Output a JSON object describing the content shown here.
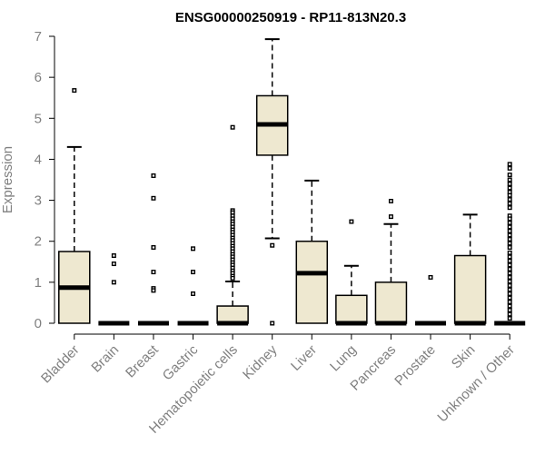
{
  "chart_data": {
    "type": "boxplot",
    "title": "ENSG00000250919 - RP11-813N20.3",
    "xlabel": "",
    "ylabel": "Expression",
    "ylim": [
      0,
      7
    ],
    "yticks": [
      0,
      1,
      2,
      3,
      4,
      5,
      6,
      7
    ],
    "box_color": "#EEE8D0",
    "categories": [
      "Bladder",
      "Brain",
      "Breast",
      "Gastric",
      "Hematopoietic cells",
      "Kidney",
      "Liver",
      "Lung",
      "Pancreas",
      "Prostate",
      "Skin",
      "Unknown / Other"
    ],
    "boxes": [
      {
        "name": "Bladder",
        "q1": 0,
        "median": 0.87,
        "q3": 1.75,
        "whisker_low": 0,
        "whisker_high": 4.3,
        "outliers": [
          5.68
        ]
      },
      {
        "name": "Brain",
        "q1": 0,
        "median": 0,
        "q3": 0,
        "whisker_low": 0,
        "whisker_high": 0,
        "outliers": [
          1.65,
          1.45,
          1.0
        ]
      },
      {
        "name": "Breast",
        "q1": 0,
        "median": 0,
        "q3": 0,
        "whisker_low": 0,
        "whisker_high": 0,
        "outliers": [
          3.6,
          3.05,
          1.85,
          1.25,
          0.85,
          0.8
        ]
      },
      {
        "name": "Gastric",
        "q1": 0,
        "median": 0,
        "q3": 0,
        "whisker_low": 0,
        "whisker_high": 0,
        "outliers": [
          1.82,
          1.25,
          0.72
        ]
      },
      {
        "name": "Hematopoietic cells",
        "q1": 0,
        "median": 0,
        "q3": 0.42,
        "whisker_low": 0,
        "whisker_high": 1.02,
        "outliers": [
          4.78,
          2.75,
          2.7,
          2.62,
          2.55,
          2.48,
          2.42,
          2.35,
          2.28,
          2.22,
          2.15,
          2.08,
          2.02,
          1.95,
          1.88,
          1.82,
          1.75,
          1.68,
          1.62,
          1.55,
          1.48,
          1.42,
          1.35,
          1.28,
          1.22,
          1.15,
          1.1
        ]
      },
      {
        "name": "Kidney",
        "q1": 4.1,
        "median": 4.85,
        "q3": 5.55,
        "whisker_low": 2.07,
        "whisker_high": 6.93,
        "outliers": [
          1.9,
          0
        ]
      },
      {
        "name": "Liver",
        "q1": 0,
        "median": 1.22,
        "q3": 2.0,
        "whisker_low": 0,
        "whisker_high": 3.48,
        "outliers": []
      },
      {
        "name": "Lung",
        "q1": 0,
        "median": 0,
        "q3": 0.68,
        "whisker_low": 0,
        "whisker_high": 1.4,
        "outliers": [
          2.48
        ]
      },
      {
        "name": "Pancreas",
        "q1": 0,
        "median": 0,
        "q3": 1.0,
        "whisker_low": 0,
        "whisker_high": 2.42,
        "outliers": [
          2.98,
          2.6
        ]
      },
      {
        "name": "Prostate",
        "q1": 0,
        "median": 0,
        "q3": 0,
        "whisker_low": 0,
        "whisker_high": 0,
        "outliers": [
          1.12
        ]
      },
      {
        "name": "Skin",
        "q1": 0,
        "median": 0,
        "q3": 1.65,
        "whisker_low": 0,
        "whisker_high": 2.65,
        "outliers": []
      },
      {
        "name": "Unknown / Other",
        "q1": 0,
        "median": 0,
        "q3": 0,
        "whisker_low": 0,
        "whisker_high": 0,
        "outliers": [
          3.88,
          3.78,
          3.62,
          3.5,
          3.4,
          3.3,
          3.2,
          3.12,
          3.02,
          2.92,
          2.82,
          2.62,
          2.55,
          2.45,
          2.35,
          2.25,
          2.15,
          2.05,
          1.95,
          1.85,
          1.72,
          1.62,
          1.52,
          1.42,
          1.32,
          1.22,
          1.12,
          1.02,
          0.92,
          0.82,
          0.72,
          0.62,
          0.52,
          0.42,
          0.32,
          0.22,
          0.12
        ]
      }
    ]
  }
}
